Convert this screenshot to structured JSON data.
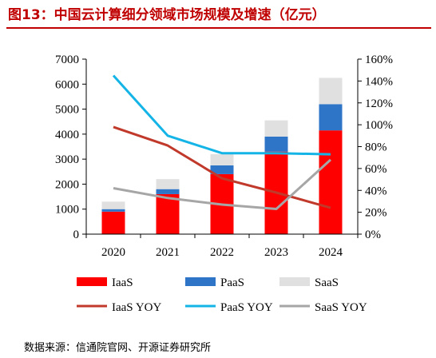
{
  "title": "图13：中国云计算细分领域市场规模及增速（亿元）",
  "source": "数据来源：信通院官网、开源证券研究所",
  "colors": {
    "iaas": "#ff0000",
    "paas": "#2e75c8",
    "saas": "#e0e0e0",
    "iaas_yoy": "#c0392b",
    "paas_yoy": "#14b4e6",
    "saas_yoy": "#a6a6a6",
    "title": "#c00000"
  },
  "chart_data": {
    "type": "bar",
    "stacked": true,
    "categories": [
      "2020",
      "2021",
      "2022",
      "2023",
      "2024"
    ],
    "series": [
      {
        "name": "IaaS",
        "values": [
          900,
          1600,
          2400,
          3300,
          4150
        ]
      },
      {
        "name": "PaaS",
        "values": [
          100,
          200,
          350,
          600,
          1050
        ]
      },
      {
        "name": "SaaS",
        "values": [
          300,
          400,
          450,
          650,
          1050
        ]
      }
    ],
    "line_series": [
      {
        "name": "IaaS YOY",
        "axis": "right",
        "values": [
          0.98,
          0.81,
          0.51,
          0.38,
          0.24
        ]
      },
      {
        "name": "PaaS YOY",
        "axis": "right",
        "values": [
          1.45,
          0.9,
          0.74,
          0.74,
          0.73
        ]
      },
      {
        "name": "SaaS YOY",
        "axis": "right",
        "values": [
          0.42,
          0.33,
          0.27,
          0.23,
          0.68
        ]
      }
    ],
    "y_left": {
      "range": [
        0,
        7000
      ],
      "ticks": [
        "0",
        "1000",
        "2000",
        "3000",
        "4000",
        "5000",
        "6000",
        "7000"
      ]
    },
    "y_right": {
      "range": [
        0,
        1.6
      ],
      "ticks": [
        "0%",
        "20%",
        "40%",
        "60%",
        "80%",
        "100%",
        "120%",
        "140%",
        "160%"
      ]
    },
    "grid": false,
    "legend_position": "bottom"
  }
}
